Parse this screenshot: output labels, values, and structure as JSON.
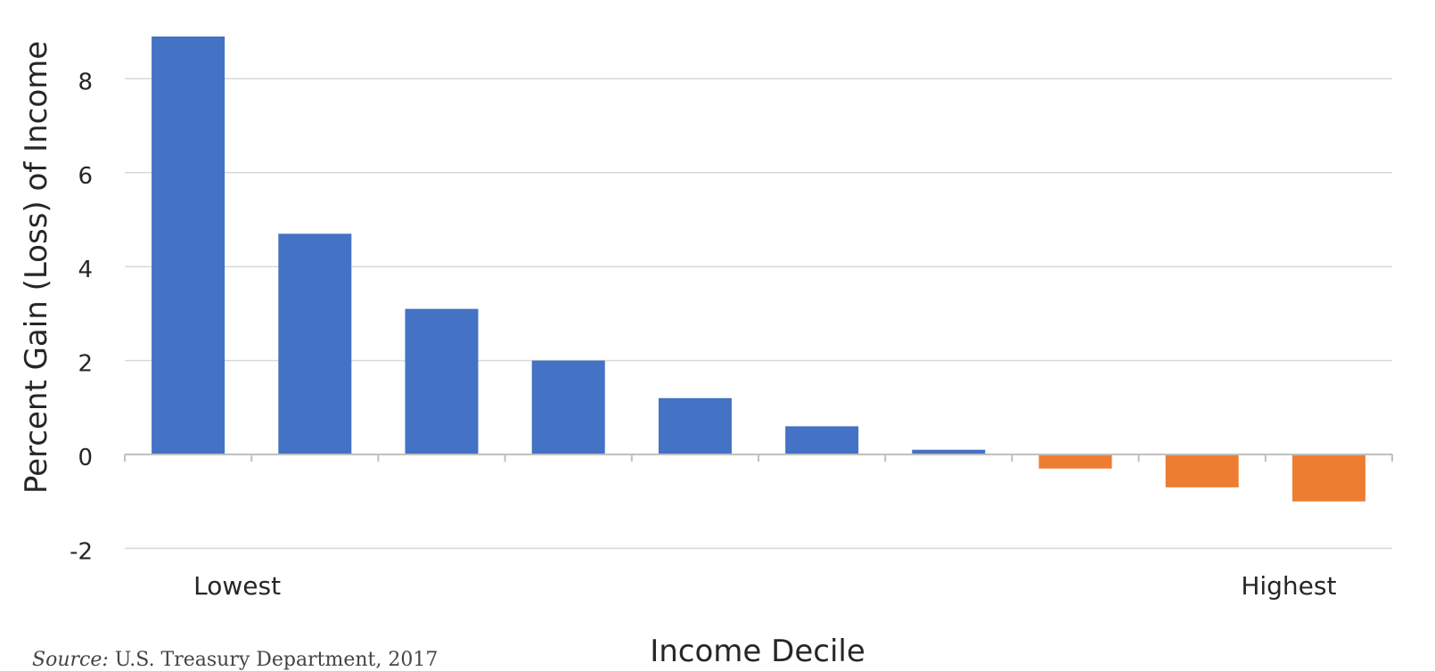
{
  "chart_data": {
    "type": "bar",
    "ylabel": "Percent Gain (Loss) of Income",
    "xlabel": "Income Decile",
    "categories": [
      "Lowest",
      "",
      "",
      "",
      "",
      "",
      "",
      "",
      "",
      "Highest"
    ],
    "values": [
      8.9,
      4.7,
      3.1,
      2.0,
      1.2,
      0.6,
      0.1,
      -0.3,
      -0.7,
      -1.0
    ],
    "y_ticks": [
      -2,
      0,
      2,
      4,
      6,
      8
    ],
    "ylim": [
      -2.4,
      9.5
    ],
    "grid": true,
    "legend": "none",
    "colors": {
      "positive": "#4472c4",
      "negative": "#ed7d31",
      "grid": "#d9d9d9",
      "axis": "#bfbfbf",
      "text": "#262626"
    }
  },
  "source": {
    "label": "Source:",
    "text": "U.S. Treasury Department, 2017"
  }
}
